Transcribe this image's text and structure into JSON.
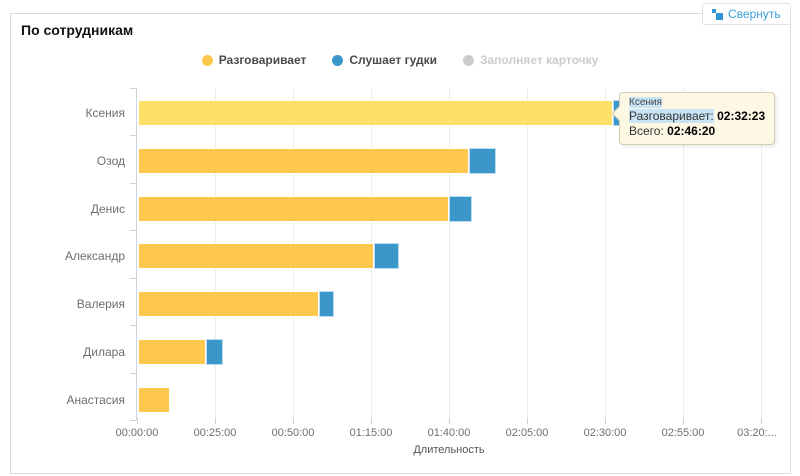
{
  "widget": {
    "title": "По сотрудникам",
    "collapse_label": "Свернуть",
    "accent_color": "#39a0d8",
    "frame_border_color": "#d9d9d9"
  },
  "legend": {
    "items": [
      {
        "label": "Разговаривает",
        "color": "#FDC84D",
        "disabled": false
      },
      {
        "label": "Слушает гудки",
        "color": "#3B97C9",
        "disabled": false
      },
      {
        "label": "Заполняет карточку",
        "color": "#CCCCCC",
        "disabled": true
      }
    ]
  },
  "chart_data": {
    "type": "bar",
    "orientation": "horizontal",
    "stacked": true,
    "title": "",
    "xlabel": "Длительность",
    "x_ticks": [
      "00:00:00",
      "00:25:00",
      "00:50:00",
      "01:15:00",
      "01:40:00",
      "02:05:00",
      "02:30:00",
      "02:55:00",
      "03:20:..."
    ],
    "x_tick_interval_minutes": 25,
    "xlim_minutes": [
      0,
      204
    ],
    "grid": true,
    "legend_position": "top",
    "categories": [
      "Ксения",
      "Озод",
      "Денис",
      "Александр",
      "Валерия",
      "Дилара",
      "Анастасия"
    ],
    "series": [
      {
        "name": "Разговаривает",
        "color": "#FDC84D",
        "hover_color": "#FCE068",
        "values_minutes": [
          152.4,
          106.1,
          99.7,
          75.6,
          58.0,
          21.8,
          10.3
        ]
      },
      {
        "name": "Слушает гудки",
        "color": "#3B97C9",
        "values_minutes": [
          14.0,
          8.7,
          7.4,
          8.0,
          4.8,
          5.4,
          0
        ]
      },
      {
        "name": "Заполняет карточку",
        "color": "#CCCCCC",
        "values_minutes": [
          0,
          0,
          0,
          0,
          0,
          0,
          0
        ]
      }
    ],
    "hovered_category": "Ксения"
  },
  "tooltip": {
    "title": "Ксения",
    "rows": [
      {
        "label": "Разговаривает:",
        "value": "02:32:23",
        "highlighted": true
      },
      {
        "label": "Всего:",
        "value": "02:46:20",
        "highlighted": false
      }
    ]
  }
}
